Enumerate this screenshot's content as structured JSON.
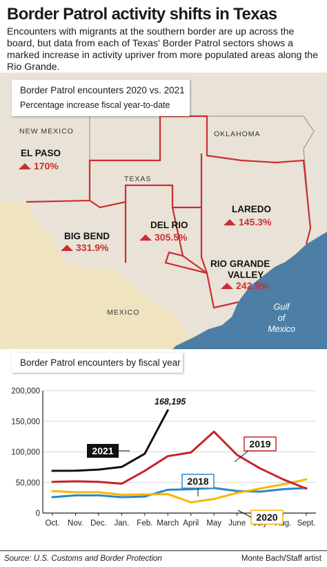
{
  "headline": "Border Patrol activity shifts in Texas",
  "dek": "Encounters with migrants at the southern border are up across the board, but data from each of Texas' Border Patrol sectors shows a marked increase in activity upriver from more populated areas along the Rio Grande.",
  "map": {
    "legend_title": "Border Patrol encounters 2020 vs. 2021",
    "legend_subtitle": "Percentage increase fiscal year-to-date",
    "region_labels": {
      "new_mexico": "NEW MEXICO",
      "oklahoma": "OKLAHOMA",
      "texas": "TEXAS",
      "mexico": "MEXICO",
      "gulf": [
        "Gulf",
        "of",
        "Mexico"
      ]
    },
    "sectors": [
      {
        "name": "EL PASO",
        "value": "170%"
      },
      {
        "name": "BIG BEND",
        "value": "331.9%"
      },
      {
        "name": "DEL RIO",
        "value": "305.5%"
      },
      {
        "name": "LAREDO",
        "value": "145.3%"
      },
      {
        "name": "RIO GRANDE",
        "name2": "VALLEY",
        "value": "242.9%"
      }
    ],
    "colors": {
      "land": "#e9e2d6",
      "mexico": "#efe3c0",
      "water": "#4d7fa6",
      "border": "#cc2d33",
      "state_line": "#7a7a7a"
    }
  },
  "chart_data": {
    "type": "line",
    "title": "Border Patrol encounters by fiscal year",
    "categories": [
      "Oct.",
      "Nov.",
      "Dec.",
      "Jan.",
      "Feb.",
      "March",
      "April",
      "May",
      "June",
      "July",
      "Aug.",
      "Sept."
    ],
    "ylim": [
      0,
      200000
    ],
    "yticks": [
      "0",
      "50,000",
      "100,000",
      "150,000",
      "200,000"
    ],
    "series": [
      {
        "name": "2021",
        "color": "#111111",
        "values": [
          69000,
          69200,
          71000,
          75400,
          97000,
          168195,
          null,
          null,
          null,
          null,
          null,
          null
        ]
      },
      {
        "name": "2019",
        "color": "#c8232c",
        "values": [
          51000,
          52000,
          51000,
          48000,
          69000,
          93000,
          99000,
          133000,
          95000,
          73000,
          55000,
          40000
        ]
      },
      {
        "name": "2018",
        "color": "#2e86c4",
        "values": [
          26000,
          29000,
          29000,
          26000,
          27000,
          38000,
          39000,
          41000,
          36000,
          35000,
          39000,
          41000
        ]
      },
      {
        "name": "2020",
        "color": "#f5b700",
        "values": [
          36000,
          34000,
          34000,
          30000,
          30500,
          31000,
          17500,
          23000,
          33000,
          40000,
          47000,
          55000
        ]
      }
    ],
    "annotation": "168,195"
  },
  "footer": {
    "source": "Source: U.S. Customs and Border Protection",
    "credit": "Monte Bach/Staff artist"
  }
}
